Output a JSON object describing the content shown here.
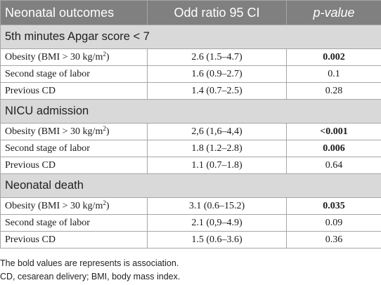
{
  "header": {
    "col1": "Neonatal outcomes",
    "col2": "Odd ratio 95 CI",
    "col3": "p-value"
  },
  "sections": [
    {
      "title": "5th minutes Apgar score < 7",
      "rows": [
        {
          "label": "Obesity (BMI > 30 kg/m",
          "sup": "2",
          "label_end": ")",
          "value": "2.6 (1.5–4.7)",
          "p": "0.002",
          "bold": true
        },
        {
          "label": "Second stage of labor",
          "value": "1.6 (0.9–2.7)",
          "p": "0.1",
          "bold": false
        },
        {
          "label": "Previous CD",
          "value": "1.4 (0.7–2.5)",
          "p": "0.28",
          "bold": false
        }
      ]
    },
    {
      "title": "NICU admission",
      "rows": [
        {
          "label": "Obesity (BMI > 30 kg/m",
          "sup": "2",
          "label_end": ")",
          "value": "2,6 (1,6–4,4)",
          "p": "<0.001",
          "bold": true
        },
        {
          "label": "Second stage of labor",
          "value": "1.8 (1.2–2.8)",
          "p": "0.006",
          "bold": true
        },
        {
          "label": "Previous CD",
          "value": "1.1 (0.7–1.8)",
          "p": "0.64",
          "bold": false
        }
      ]
    },
    {
      "title": "Neonatal death",
      "rows": [
        {
          "label": "Obesity (BMI > 30 kg/m",
          "sup": "2",
          "label_end": ")",
          "value": "3.1 (0.6–15.2)",
          "p": "0.035",
          "bold": true
        },
        {
          "label": "Second stage of labor",
          "value": "2.1 (0,9–4.9)",
          "p": "0.09",
          "bold": false
        },
        {
          "label": "Previous CD",
          "value": "1.5 (0.6–3.6)",
          "p": "0.36",
          "bold": false
        }
      ]
    }
  ],
  "notes": [
    "The bold values are represents is association.",
    "CD, cesarean delivery; BMI, body mass index."
  ]
}
